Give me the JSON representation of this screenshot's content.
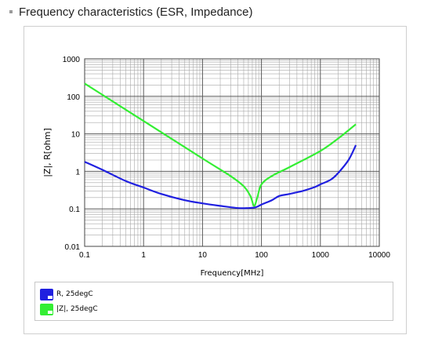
{
  "header": {
    "title": "Frequency characteristics (ESR, Impedance)"
  },
  "chart_data": {
    "type": "line",
    "title": "",
    "xlabel": "Frequency[MHz]",
    "ylabel": "|Z|, R[ohm]",
    "x_scale": "log",
    "y_scale": "log",
    "xlim": [
      0.1,
      10000
    ],
    "ylim": [
      0.01,
      1000
    ],
    "x_tick_labels": [
      "0.1",
      "1",
      "10",
      "100",
      "1000",
      "10000"
    ],
    "y_tick_labels": [
      "1000",
      "100",
      "10",
      "1",
      "0.1",
      "0.01"
    ],
    "grid": true,
    "legend_position": "bottom",
    "series": [
      {
        "name": "R, 25degC",
        "color": "#2020e0",
        "x": [
          0.1,
          0.2,
          0.5,
          1,
          2,
          5,
          10,
          20,
          40,
          60,
          80,
          100,
          150,
          200,
          300,
          500,
          800,
          1000,
          1500,
          2000,
          3000,
          4000
        ],
        "y": [
          1.8,
          1.1,
          0.55,
          0.37,
          0.25,
          0.17,
          0.14,
          0.12,
          0.105,
          0.105,
          0.11,
          0.13,
          0.17,
          0.22,
          0.25,
          0.3,
          0.38,
          0.45,
          0.6,
          0.9,
          2.0,
          5.0
        ]
      },
      {
        "name": "|Z|, 25degC",
        "color": "#33ee33",
        "x": [
          0.1,
          1,
          10,
          30,
          50,
          65,
          75,
          85,
          100,
          150,
          300,
          1000,
          2000,
          4000
        ],
        "y": [
          220,
          22,
          2.2,
          0.75,
          0.4,
          0.22,
          0.12,
          0.2,
          0.45,
          0.75,
          1.3,
          3.5,
          7.5,
          18
        ]
      }
    ]
  }
}
